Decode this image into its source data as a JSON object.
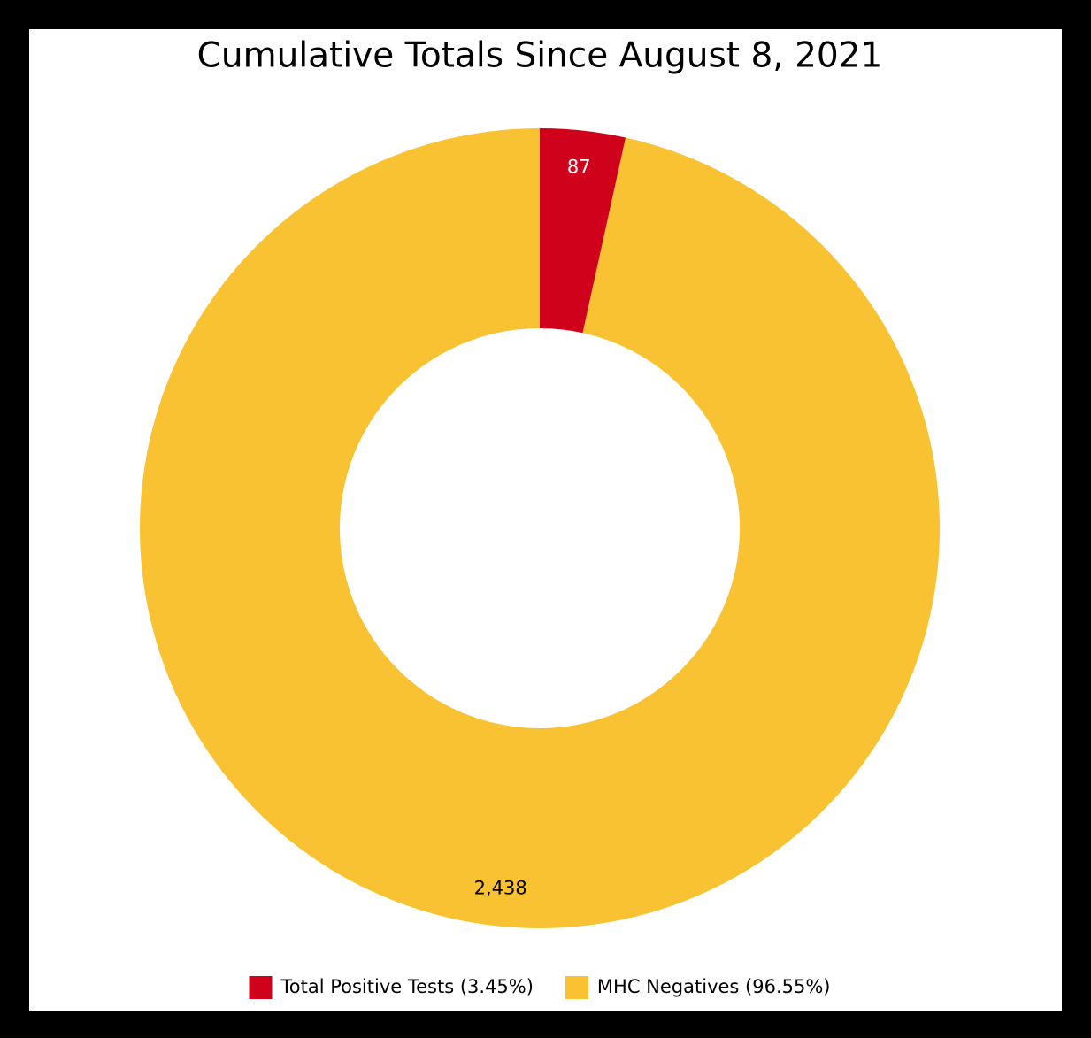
{
  "chart_data": {
    "type": "donut",
    "title": "Cumulative Totals Since August 8, 2021",
    "categories": [
      "Total Positive Tests (3.45%)",
      "MHC Negatives (96.55%)"
    ],
    "values": [
      87,
      2438
    ],
    "value_labels": [
      "87",
      "2,438"
    ],
    "colors": [
      "#d0021b",
      "#f9c232"
    ],
    "label_colors": [
      "#ffffff",
      "#000000"
    ],
    "legend": "bottom"
  }
}
